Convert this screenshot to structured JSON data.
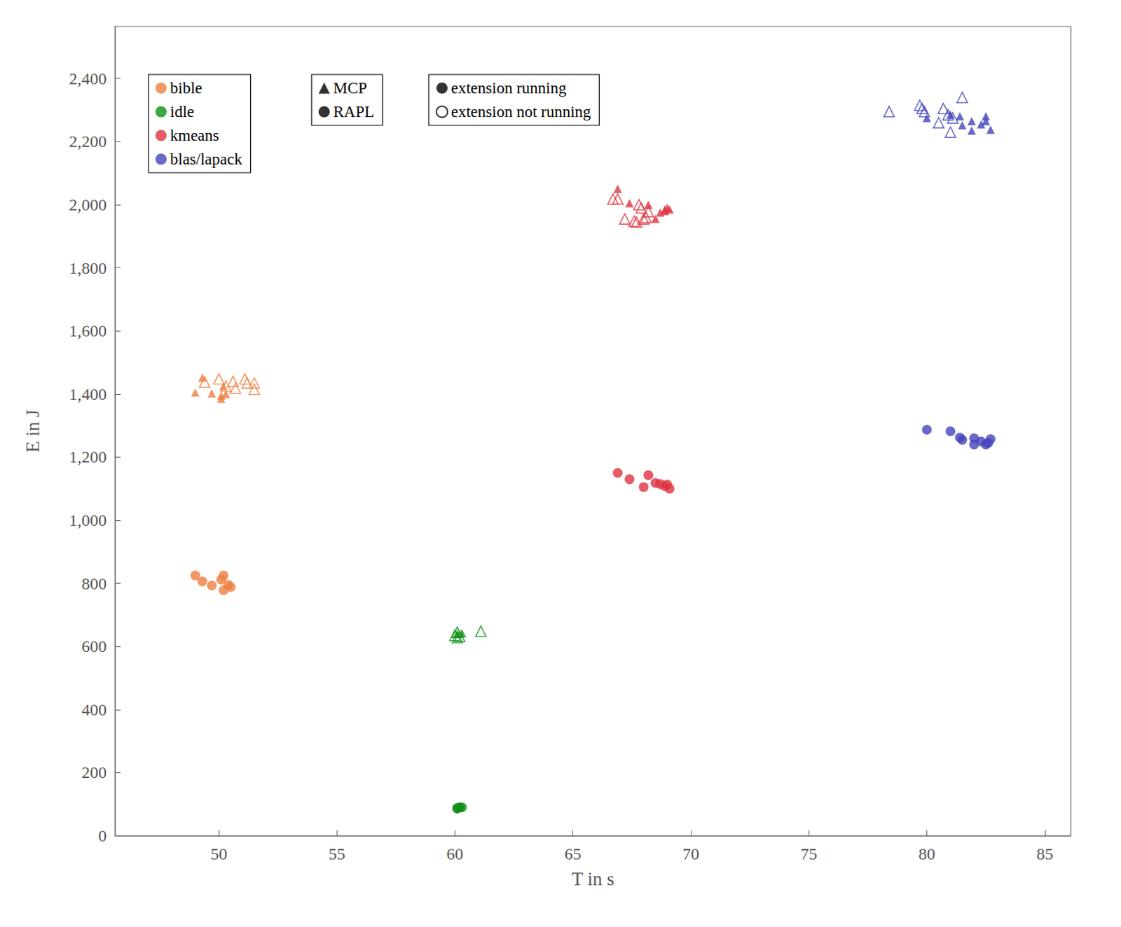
{
  "chart_data": {
    "type": "scatter",
    "x_label": "T in s",
    "y_label": "E in J",
    "xlim": [
      45.6,
      86.1
    ],
    "xticks": [
      50,
      55,
      60,
      65,
      70,
      75,
      80,
      85
    ],
    "ylim": [
      0,
      2565
    ],
    "yticks": [
      0,
      200,
      400,
      600,
      800,
      {
        "value": 1000,
        "label": "1,000"
      },
      {
        "value": 1200,
        "label": "1,200"
      },
      {
        "value": 1400,
        "label": "1,400"
      },
      {
        "value": 1600,
        "label": "1,600"
      },
      {
        "value": 1800,
        "label": "1,800"
      },
      {
        "value": 2000,
        "label": "2,000"
      },
      {
        "value": 2200,
        "label": "2,200"
      },
      {
        "value": 2400,
        "label": "2,400"
      }
    ],
    "grid": false,
    "legends": [
      {
        "entries": [
          {
            "label": "bible",
            "color": "#ee8040",
            "marker": "circle"
          },
          {
            "label": "idle",
            "color": "#0f9015",
            "marker": "circle"
          },
          {
            "label": "kmeans",
            "color": "#dd3341",
            "marker": "circle"
          },
          {
            "label": "blas/lapack",
            "color": "#4444bb",
            "marker": "circle"
          }
        ]
      },
      {
        "entries": [
          {
            "label": "MCP",
            "color": "#000000",
            "marker": "triangle"
          },
          {
            "label": "RAPL",
            "color": "#000000",
            "marker": "circle"
          }
        ]
      },
      {
        "entries": [
          {
            "label": "extension running",
            "color": "#000000",
            "marker": "circle"
          },
          {
            "label": "extension not running",
            "color": "#000000",
            "marker": "circle-open"
          }
        ]
      }
    ],
    "series": [
      {
        "name": "bible",
        "meter": "MCP",
        "extension": "extension running",
        "color": "#ee8040",
        "marker": "triangle",
        "x": [
          49.0,
          49.3,
          49.7,
          50.1,
          50.2,
          50.3,
          50.1
        ],
        "values": [
          1405,
          1452,
          1402,
          1385,
          1425,
          1400,
          1395
        ]
      },
      {
        "name": "bible",
        "meter": "MCP",
        "extension": "extension not running",
        "color": "#ee8040",
        "marker": "triangle-open",
        "x": [
          49.4,
          50.0,
          50.6,
          51.1,
          51.5,
          50.7,
          51.2,
          51.5,
          50.3
        ],
        "values": [
          1438,
          1448,
          1440,
          1448,
          1435,
          1418,
          1435,
          1415,
          1425
        ]
      },
      {
        "name": "bible",
        "meter": "RAPL",
        "extension": "extension running",
        "color": "#ee8040",
        "marker": "circle",
        "x": [
          49.0,
          49.3,
          49.7,
          50.1,
          50.2,
          50.2,
          50.4,
          50.5
        ],
        "values": [
          825,
          806,
          793,
          812,
          825,
          778,
          795,
          788
        ]
      },
      {
        "name": "idle",
        "meter": "MCP",
        "extension": "extension running",
        "color": "#0f9015",
        "marker": "triangle",
        "x": [
          60.1,
          60.3
        ],
        "values": [
          640,
          642
        ]
      },
      {
        "name": "idle",
        "meter": "MCP",
        "extension": "extension not running",
        "color": "#0f9015",
        "marker": "triangle-open",
        "x": [
          60.1,
          60.1,
          60.2,
          61.1,
          60.0
        ],
        "values": [
          645,
          628,
          632,
          648,
          635
        ]
      },
      {
        "name": "idle",
        "meter": "RAPL",
        "extension": "extension running",
        "color": "#0f9015",
        "marker": "circle",
        "x": [
          60.1,
          60.2,
          60.3,
          60.1
        ],
        "values": [
          88,
          90,
          90,
          86
        ]
      },
      {
        "name": "kmeans",
        "meter": "MCP",
        "extension": "extension running",
        "color": "#dd3341",
        "marker": "triangle",
        "x": [
          66.9,
          67.4,
          68.2,
          68.5,
          68.7,
          68.9,
          69.0,
          69.1,
          68.9
        ],
        "values": [
          2050,
          2005,
          2000,
          1955,
          1975,
          1985,
          1990,
          1985,
          1980
        ]
      },
      {
        "name": "kmeans",
        "meter": "MCP",
        "extension": "extension not running",
        "color": "#dd3341",
        "marker": "triangle-open",
        "x": [
          66.7,
          66.9,
          67.2,
          67.6,
          67.7,
          67.8,
          68.0,
          68.1,
          68.2,
          67.9
        ],
        "values": [
          2018,
          2018,
          1955,
          1948,
          1945,
          2000,
          1955,
          1960,
          1978,
          1990
        ]
      },
      {
        "name": "kmeans",
        "meter": "RAPL",
        "extension": "extension running",
        "color": "#dd3341",
        "marker": "circle",
        "x": [
          66.9,
          67.4,
          68.0,
          68.2,
          68.5,
          68.7,
          68.9,
          69.0,
          69.1
        ],
        "values": [
          1150,
          1130,
          1105,
          1143,
          1118,
          1115,
          1108,
          1113,
          1100
        ]
      },
      {
        "name": "blas/lapack",
        "meter": "MCP",
        "extension": "extension running",
        "color": "#4444bb",
        "marker": "triangle",
        "x": [
          80.0,
          81.0,
          81.4,
          81.5,
          81.9,
          81.9,
          82.3,
          82.5,
          82.5,
          82.7
        ],
        "values": [
          2275,
          2285,
          2280,
          2252,
          2265,
          2235,
          2255,
          2265,
          2280,
          2238
        ]
      },
      {
        "name": "blas/lapack",
        "meter": "MCP",
        "extension": "extension not running",
        "color": "#4444bb",
        "marker": "triangle-open",
        "x": [
          78.4,
          79.7,
          79.8,
          79.9,
          80.5,
          80.7,
          80.9,
          81.0,
          81.5,
          81.1
        ],
        "values": [
          2295,
          2315,
          2305,
          2295,
          2260,
          2305,
          2285,
          2230,
          2340,
          2275
        ]
      },
      {
        "name": "blas/lapack",
        "meter": "RAPL",
        "extension": "extension running",
        "color": "#4444bb",
        "marker": "circle",
        "x": [
          80.0,
          81.0,
          81.4,
          81.5,
          82.0,
          82.0,
          82.3,
          82.5,
          82.6,
          82.7
        ],
        "values": [
          1287,
          1282,
          1262,
          1255,
          1240,
          1260,
          1250,
          1240,
          1245,
          1257
        ]
      }
    ]
  }
}
